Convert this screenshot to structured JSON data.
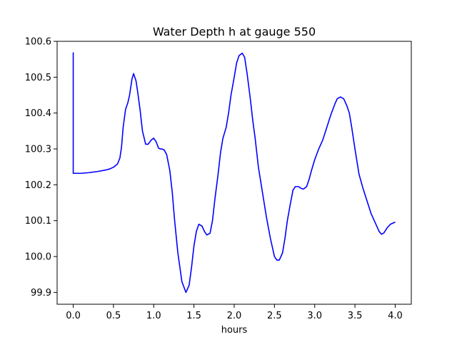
{
  "chart_data": {
    "type": "line",
    "title": "Water Depth h at gauge 550",
    "xlabel": "hours",
    "ylabel": "",
    "xlim": [
      -0.2,
      4.2
    ],
    "ylim": [
      99.867,
      100.6
    ],
    "xticks": [
      0.0,
      0.5,
      1.0,
      1.5,
      2.0,
      2.5,
      3.0,
      3.5,
      4.0
    ],
    "xtick_labels": [
      "0.0",
      "0.5",
      "1.0",
      "1.5",
      "2.0",
      "2.5",
      "3.0",
      "3.5",
      "4.0"
    ],
    "yticks": [
      99.9,
      100.0,
      100.1,
      100.2,
      100.3,
      100.4,
      100.5,
      100.6
    ],
    "ytick_labels": [
      "99.9",
      "100.0",
      "100.1",
      "100.2",
      "100.3",
      "100.4",
      "100.5",
      "100.6"
    ],
    "grid": false,
    "series": [
      {
        "color": "#0000ff",
        "x": [
          0.0,
          0.0,
          0.0,
          0.1,
          0.2,
          0.3,
          0.4,
          0.45,
          0.5,
          0.55,
          0.58,
          0.6,
          0.62,
          0.65,
          0.68,
          0.7,
          0.73,
          0.75,
          0.78,
          0.8,
          0.83,
          0.86,
          0.9,
          0.93,
          0.97,
          1.0,
          1.03,
          1.06,
          1.08,
          1.1,
          1.13,
          1.16,
          1.2,
          1.23,
          1.26,
          1.3,
          1.35,
          1.4,
          1.44,
          1.47,
          1.5,
          1.53,
          1.56,
          1.6,
          1.63,
          1.66,
          1.7,
          1.73,
          1.76,
          1.8,
          1.83,
          1.86,
          1.9,
          1.93,
          1.96,
          2.0,
          2.03,
          2.06,
          2.1,
          2.13,
          2.16,
          2.2,
          2.23,
          2.26,
          2.3,
          2.35,
          2.4,
          2.45,
          2.5,
          2.53,
          2.56,
          2.6,
          2.63,
          2.66,
          2.7,
          2.73,
          2.76,
          2.8,
          2.83,
          2.86,
          2.9,
          2.93,
          2.96,
          3.0,
          3.05,
          3.1,
          3.15,
          3.2,
          3.25,
          3.28,
          3.32,
          3.36,
          3.4,
          3.43,
          3.46,
          3.5,
          3.55,
          3.6,
          3.65,
          3.7,
          3.75,
          3.8,
          3.83,
          3.86,
          3.9,
          3.94,
          3.97,
          4.0
        ],
        "values": [
          100.232,
          100.568,
          100.232,
          100.232,
          100.234,
          100.237,
          100.241,
          100.244,
          100.249,
          100.258,
          100.275,
          100.305,
          100.36,
          100.41,
          100.43,
          100.45,
          100.495,
          100.51,
          100.49,
          100.46,
          100.41,
          100.35,
          100.313,
          100.313,
          100.325,
          100.33,
          100.32,
          100.302,
          100.3,
          100.3,
          100.297,
          100.285,
          100.24,
          100.18,
          100.1,
          100.01,
          99.93,
          99.9,
          99.92,
          99.97,
          100.03,
          100.07,
          100.09,
          100.085,
          100.07,
          100.06,
          100.065,
          100.1,
          100.16,
          100.23,
          100.29,
          100.33,
          100.36,
          100.4,
          100.45,
          100.5,
          100.54,
          100.56,
          100.567,
          100.555,
          100.51,
          100.44,
          100.38,
          100.33,
          100.25,
          100.18,
          100.11,
          100.05,
          100.0,
          99.99,
          99.99,
          100.01,
          100.05,
          100.1,
          100.15,
          100.185,
          100.195,
          100.195,
          100.19,
          100.188,
          100.195,
          100.215,
          100.24,
          100.27,
          100.3,
          100.325,
          100.36,
          100.395,
          100.425,
          100.44,
          100.445,
          100.44,
          100.42,
          100.4,
          100.36,
          100.3,
          100.23,
          100.19,
          100.155,
          100.12,
          100.095,
          100.07,
          100.062,
          100.066,
          100.08,
          100.09,
          100.093,
          100.096
        ]
      }
    ]
  }
}
